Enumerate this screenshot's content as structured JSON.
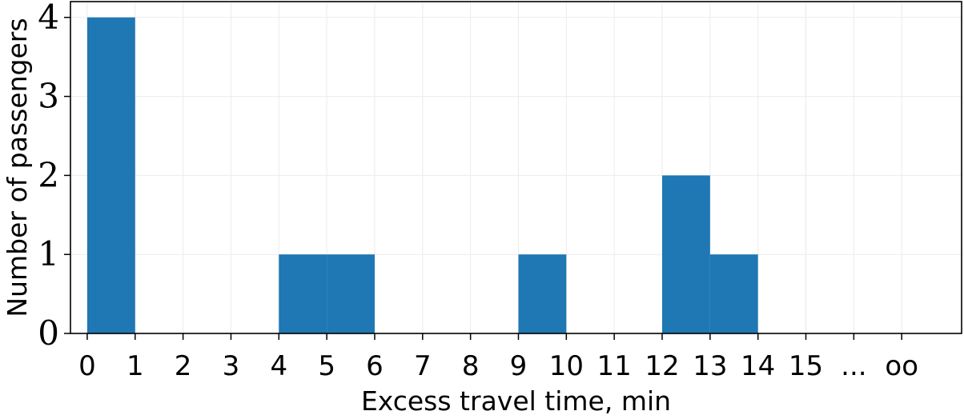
{
  "chart_data": {
    "type": "bar",
    "title": "",
    "xlabel": "Excess travel time, min",
    "ylabel": "Number of passengers",
    "x_tick_labels": [
      "0",
      "1",
      "2",
      "3",
      "4",
      "5",
      "6",
      "7",
      "8",
      "9",
      "10",
      "11",
      "12",
      "13",
      "14",
      "15",
      "...",
      "oo"
    ],
    "bins": [
      {
        "x0": 0,
        "x1": 1,
        "value": 4
      },
      {
        "x0": 1,
        "x1": 2,
        "value": 0
      },
      {
        "x0": 2,
        "x1": 3,
        "value": 0
      },
      {
        "x0": 3,
        "x1": 4,
        "value": 0
      },
      {
        "x0": 4,
        "x1": 5,
        "value": 1
      },
      {
        "x0": 5,
        "x1": 6,
        "value": 1
      },
      {
        "x0": 6,
        "x1": 7,
        "value": 0
      },
      {
        "x0": 7,
        "x1": 8,
        "value": 0
      },
      {
        "x0": 8,
        "x1": 9,
        "value": 0
      },
      {
        "x0": 9,
        "x1": 10,
        "value": 1
      },
      {
        "x0": 10,
        "x1": 11,
        "value": 0
      },
      {
        "x0": 11,
        "x1": 12,
        "value": 0
      },
      {
        "x0": 12,
        "x1": 13,
        "value": 2
      },
      {
        "x0": 13,
        "x1": 14,
        "value": 1
      },
      {
        "x0": 14,
        "x1": 15,
        "value": 0
      },
      {
        "x0": 15,
        "x1": 16,
        "value": 0
      },
      {
        "x0": 16,
        "x1": 17,
        "value": 0
      }
    ],
    "y_ticks": [
      0,
      1,
      2,
      3,
      4
    ],
    "xlim": [
      -0.35,
      18.25
    ],
    "ylim": [
      0,
      4.2
    ],
    "grid": true,
    "bar_color": "#1f77b4",
    "grid_color": "#ebebeb"
  }
}
